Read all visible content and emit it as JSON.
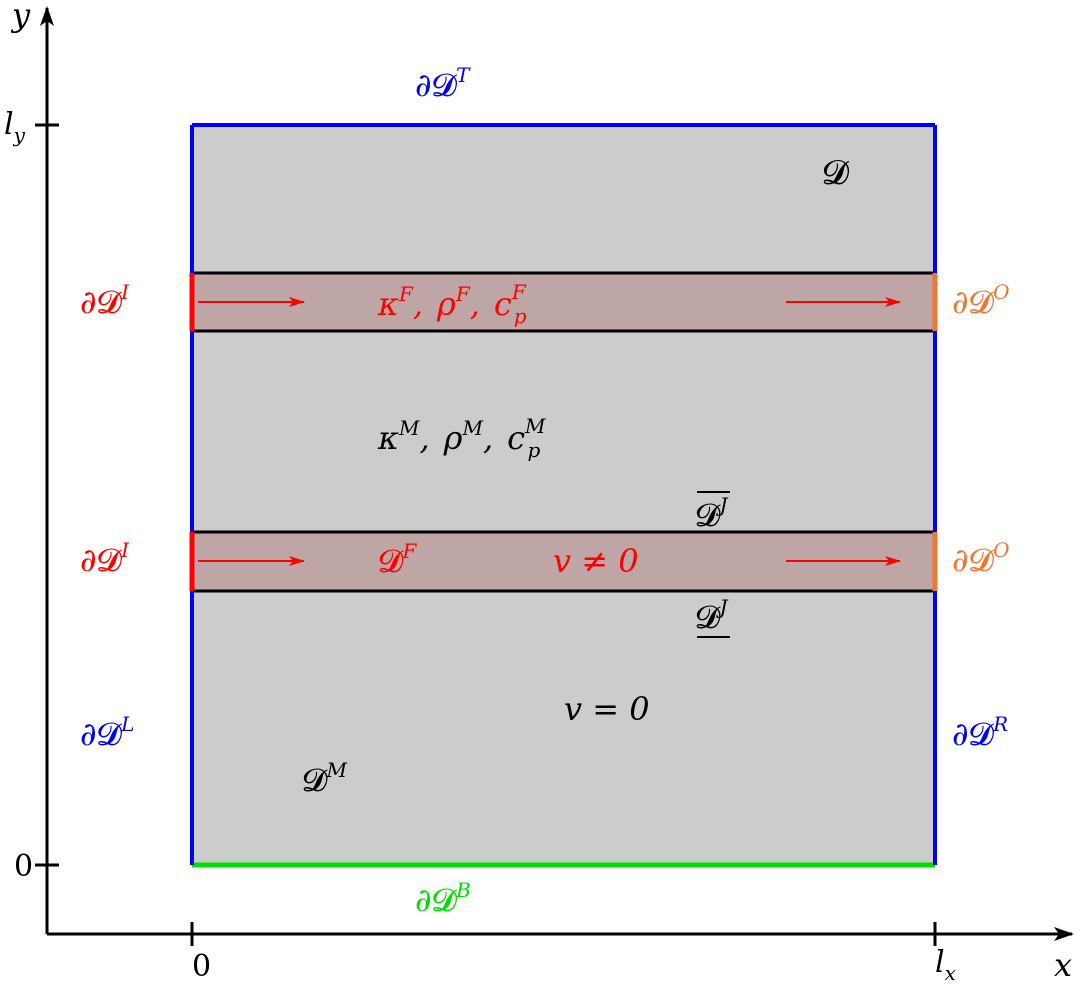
{
  "colors": {
    "axis": "#000000",
    "domain_fill": "#cccccc",
    "fracture_fill": "#bfa6a6",
    "wall": "#0000ff",
    "bottom": "#00dd00",
    "inlet": "#ff0000",
    "outlet": "#ee7733",
    "fracture_border": "#000000",
    "fracture_text": "#ff0000",
    "matrix_text": "#000000"
  },
  "axes": {
    "x_label": "x",
    "y_label": "y",
    "x_tick_start": "0",
    "x_tick_end_base": "l",
    "x_tick_end_sub": "x",
    "y_tick_start": "0",
    "y_tick_end_base": "l",
    "y_tick_end_sub": "y"
  },
  "boundaries": {
    "top": {
      "prefix": "∂𝓓",
      "sup": "T"
    },
    "bottom": {
      "prefix": "∂𝓓",
      "sup": "B"
    },
    "left": {
      "prefix": "∂𝓓",
      "sup": "L"
    },
    "right": {
      "prefix": "∂𝓓",
      "sup": "R"
    },
    "inlet_upper": {
      "prefix": "∂𝓓",
      "sup": "I"
    },
    "inlet_lower": {
      "prefix": "∂𝓓",
      "sup": "I"
    },
    "outlet_upper": {
      "prefix": "∂𝓓",
      "sup": "O"
    },
    "outlet_lower": {
      "prefix": "∂𝓓",
      "sup": "O"
    }
  },
  "regions": {
    "domain": "𝓓",
    "matrix": {
      "base": "𝓓",
      "sup": "M"
    },
    "fracture": {
      "base": "𝓓",
      "sup": "F"
    },
    "interface_upper": {
      "base": "𝓓",
      "sup": "J"
    },
    "interface_lower": {
      "base": "𝓓",
      "sup": "J"
    }
  },
  "properties": {
    "fracture": {
      "kappa": "κ",
      "kappa_sup": "F",
      "rho": "ρ",
      "rho_sup": "F",
      "c": "c",
      "c_sub": "p",
      "c_sup": "F",
      "sep": ","
    },
    "matrix": {
      "kappa": "κ",
      "kappa_sup": "M",
      "rho": "ρ",
      "rho_sup": "M",
      "c": "c",
      "c_sub": "p",
      "c_sup": "M",
      "sep": ","
    }
  },
  "velocity": {
    "fracture": "v ≠ 0",
    "matrix": "v = 0"
  }
}
